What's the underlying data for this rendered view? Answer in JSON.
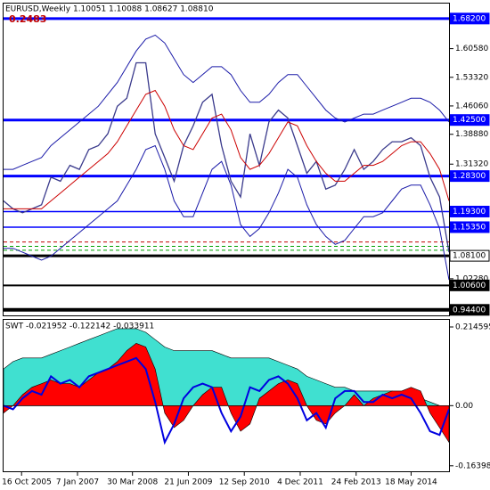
{
  "chart_data": [
    {
      "type": "line",
      "title": "EURUSD,Weekly  1.10051 1.10088 1.08627 1.08810",
      "annotation": "0.2483",
      "xlim": [
        0,
        47
      ],
      "ylim": [
        0.93,
        1.72
      ],
      "yticks": [
        {
          "value": 1.6058,
          "label": "1.60580"
        },
        {
          "value": 1.5332,
          "label": "1.53320"
        },
        {
          "value": 1.4606,
          "label": "1.46060"
        },
        {
          "value": 1.3888,
          "label": "1.38880"
        },
        {
          "value": 1.3132,
          "label": "1.31320"
        },
        {
          "value": 1.0228,
          "label": "1.02280"
        }
      ],
      "levels": [
        {
          "value": 1.682,
          "label": "1.68200",
          "color": "#0000ff",
          "width": 3
        },
        {
          "value": 1.425,
          "label": "1.42500",
          "color": "#0000ff",
          "width": 3
        },
        {
          "value": 1.283,
          "label": "1.28300",
          "color": "#0000ff",
          "width": 3
        },
        {
          "value": 1.193,
          "label": "1.19300",
          "color": "#0000ff",
          "width": 1.5
        },
        {
          "value": 1.1535,
          "label": "1.15350",
          "color": "#0000ff",
          "width": 1.5
        },
        {
          "value": 1.081,
          "label": "1.08100",
          "color": "#000000",
          "width": 3,
          "label_fill": "#ffffff"
        },
        {
          "value": 1.006,
          "label": "1.00600",
          "color": "#000000",
          "width": 2
        },
        {
          "value": 0.944,
          "label": "0.94400",
          "color": "#000000",
          "width": 4
        }
      ],
      "dashed_levels": [
        {
          "value": 1.116,
          "color": "#c00000"
        },
        {
          "value": 1.105,
          "color": "#00a000"
        },
        {
          "value": 1.095,
          "color": "#00a000"
        }
      ],
      "series": [
        {
          "color": "#3a3a8c",
          "width": 1.3,
          "values": [
            1.22,
            1.2,
            1.19,
            1.2,
            1.21,
            1.28,
            1.27,
            1.31,
            1.3,
            1.35,
            1.36,
            1.39,
            1.46,
            1.48,
            1.57,
            1.57,
            1.39,
            1.33,
            1.27,
            1.36,
            1.41,
            1.47,
            1.49,
            1.36,
            1.27,
            1.23,
            1.39,
            1.31,
            1.42,
            1.45,
            1.43,
            1.36,
            1.29,
            1.32,
            1.25,
            1.26,
            1.3,
            1.35,
            1.3,
            1.32,
            1.35,
            1.37,
            1.37,
            1.38,
            1.36,
            1.28,
            1.23,
            1.09
          ]
        },
        {
          "color": "#cc0000",
          "width": 1,
          "values": [
            1.2,
            1.2,
            1.2,
            1.2,
            1.2,
            1.22,
            1.24,
            1.26,
            1.28,
            1.3,
            1.32,
            1.34,
            1.37,
            1.41,
            1.45,
            1.49,
            1.5,
            1.46,
            1.4,
            1.36,
            1.35,
            1.39,
            1.43,
            1.44,
            1.4,
            1.33,
            1.3,
            1.31,
            1.34,
            1.38,
            1.42,
            1.41,
            1.36,
            1.32,
            1.29,
            1.27,
            1.27,
            1.29,
            1.31,
            1.31,
            1.32,
            1.34,
            1.36,
            1.37,
            1.37,
            1.34,
            1.3,
            1.22
          ]
        },
        {
          "color": "#1a1aa8",
          "width": 1,
          "values": [
            1.3,
            1.3,
            1.31,
            1.32,
            1.33,
            1.36,
            1.38,
            1.4,
            1.42,
            1.44,
            1.46,
            1.49,
            1.52,
            1.56,
            1.6,
            1.63,
            1.64,
            1.62,
            1.58,
            1.54,
            1.52,
            1.54,
            1.56,
            1.56,
            1.54,
            1.5,
            1.47,
            1.47,
            1.49,
            1.52,
            1.54,
            1.54,
            1.51,
            1.48,
            1.45,
            1.43,
            1.42,
            1.43,
            1.44,
            1.44,
            1.45,
            1.46,
            1.47,
            1.48,
            1.48,
            1.47,
            1.45,
            1.42
          ]
        },
        {
          "color": "#1a1aa8",
          "width": 1,
          "values": [
            1.1,
            1.1,
            1.09,
            1.08,
            1.07,
            1.08,
            1.1,
            1.12,
            1.14,
            1.16,
            1.18,
            1.2,
            1.22,
            1.26,
            1.3,
            1.35,
            1.36,
            1.3,
            1.22,
            1.18,
            1.18,
            1.24,
            1.3,
            1.32,
            1.26,
            1.16,
            1.13,
            1.15,
            1.19,
            1.24,
            1.3,
            1.28,
            1.21,
            1.16,
            1.13,
            1.11,
            1.12,
            1.15,
            1.18,
            1.18,
            1.19,
            1.22,
            1.25,
            1.26,
            1.26,
            1.21,
            1.15,
            1.02
          ]
        }
      ]
    },
    {
      "type": "area",
      "title": "SWT -0.021952 -0.122142 -0.033911",
      "xlim": [
        0,
        47
      ],
      "ylim": [
        -0.179,
        0.234
      ],
      "yticks": [
        0.214595,
        {
          "value": 0,
          "label": "0.00"
        },
        -0.163981
      ],
      "xticks": [
        {
          "value": 1.9,
          "label": "16 Oct 2005"
        },
        {
          "value": 7.8,
          "label": "7 Jan 2007"
        },
        {
          "value": 13.6,
          "label": "30 Mar 2008"
        },
        {
          "value": 19.5,
          "label": "21 Jun 2009"
        },
        {
          "value": 25.4,
          "label": "12 Sep 2010"
        },
        {
          "value": 31.3,
          "label": "4 Dec 2011"
        },
        {
          "value": 37.2,
          "label": "24 Feb 2013"
        },
        {
          "value": 43.0,
          "label": "18 May 2014"
        }
      ],
      "series": [
        {
          "color": "#40e0d0",
          "fill": true,
          "values": [
            0.1,
            0.12,
            0.13,
            0.13,
            0.13,
            0.14,
            0.15,
            0.16,
            0.17,
            0.18,
            0.19,
            0.2,
            0.21,
            0.21,
            0.21,
            0.2,
            0.18,
            0.16,
            0.15,
            0.15,
            0.15,
            0.15,
            0.15,
            0.14,
            0.13,
            0.13,
            0.13,
            0.13,
            0.13,
            0.12,
            0.11,
            0.1,
            0.08,
            0.07,
            0.06,
            0.05,
            0.05,
            0.04,
            0.04,
            0.04,
            0.04,
            0.04,
            0.03,
            0.03,
            0.02,
            0.01,
            0.0,
            -0.02
          ]
        },
        {
          "color": "#ff0000",
          "fill": true,
          "values": [
            -0.02,
            0.0,
            0.03,
            0.05,
            0.06,
            0.07,
            0.06,
            0.06,
            0.05,
            0.07,
            0.09,
            0.1,
            0.12,
            0.15,
            0.17,
            0.16,
            0.1,
            -0.02,
            -0.06,
            -0.04,
            0.0,
            0.03,
            0.05,
            0.05,
            -0.02,
            -0.07,
            -0.05,
            0.02,
            0.04,
            0.06,
            0.07,
            0.06,
            0.0,
            -0.04,
            -0.05,
            -0.02,
            0.0,
            0.03,
            0.0,
            0.02,
            0.03,
            0.04,
            0.04,
            0.05,
            0.04,
            -0.02,
            -0.06,
            -0.1
          ]
        },
        {
          "color": "#0000e0",
          "fill": false,
          "values": [
            0.0,
            -0.01,
            0.02,
            0.04,
            0.03,
            0.08,
            0.06,
            0.07,
            0.05,
            0.08,
            0.09,
            0.1,
            0.11,
            0.12,
            0.13,
            0.1,
            0.01,
            -0.1,
            -0.05,
            0.02,
            0.05,
            0.06,
            0.05,
            -0.02,
            -0.07,
            -0.03,
            0.05,
            0.04,
            0.07,
            0.08,
            0.06,
            0.02,
            -0.04,
            -0.02,
            -0.06,
            0.02,
            0.04,
            0.04,
            0.01,
            0.01,
            0.03,
            0.02,
            0.03,
            0.02,
            -0.02,
            -0.07,
            -0.08,
            -0.01
          ]
        }
      ]
    }
  ]
}
